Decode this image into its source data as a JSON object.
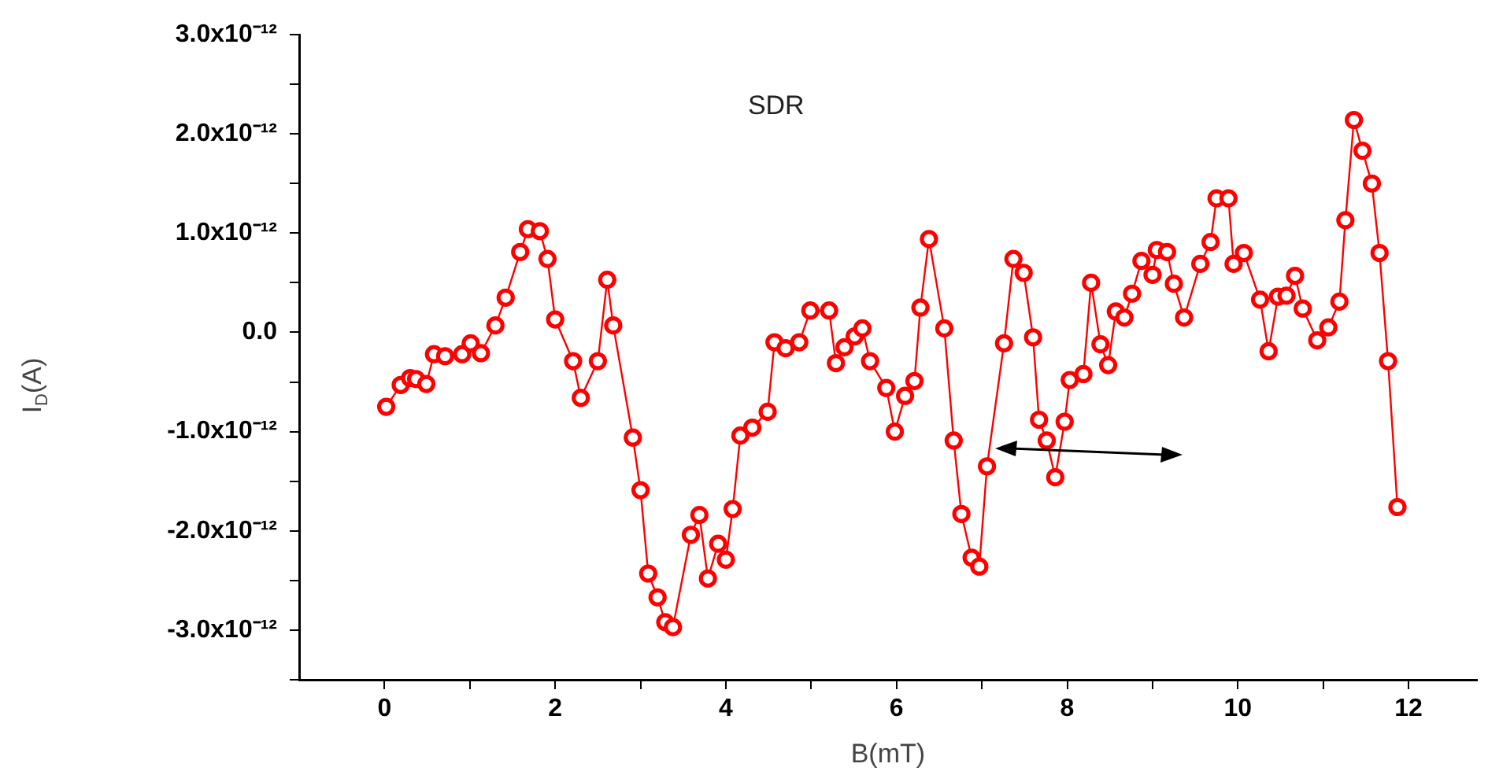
{
  "chart_data": {
    "type": "line",
    "xlabel": "B(mT)",
    "ylabel": "I$_{D}$(A)",
    "annotations": [
      "SDR"
    ],
    "xlim": [
      -1,
      12.8
    ],
    "xticks": [
      0,
      {
        "value": 1,
        "label": null
      },
      2,
      {
        "value": 3,
        "label": null
      },
      4,
      {
        "value": 5,
        "label": null
      },
      6,
      {
        "value": 7,
        "label": null
      },
      8,
      {
        "value": 9,
        "label": null
      },
      10,
      {
        "value": 11,
        "label": null
      },
      12
    ],
    "ylim": [
      -3.5e-12,
      3e-12
    ],
    "yticks": [
      {
        "value": -3.5e-12,
        "label": null
      },
      {
        "value": -3e-12,
        "label": "-3.0x10⁻¹²"
      },
      {
        "value": -2.5e-12,
        "label": null
      },
      {
        "value": -2e-12,
        "label": "-2.0x10⁻¹²"
      },
      {
        "value": -1.5e-12,
        "label": null
      },
      {
        "value": -1e-12,
        "label": "-1.0x10⁻¹²"
      },
      {
        "value": -5e-13,
        "label": null
      },
      {
        "value": 0,
        "label": "0.0"
      },
      {
        "value": 5e-13,
        "label": null
      },
      {
        "value": 1e-12,
        "label": "1.0x10⁻¹²"
      },
      {
        "value": 1.5e-12,
        "label": null
      },
      {
        "value": 2e-12,
        "label": "2.0x10⁻¹²"
      },
      {
        "value": 2.5e-12,
        "label": null
      },
      {
        "value": 3e-12,
        "label": "3.0x10⁻¹²"
      }
    ],
    "grid": false,
    "legend": false,
    "marker": "circle",
    "line_style": "solid",
    "series": [
      {
        "color": "#ff0000",
        "x": [
          0.02,
          0.19,
          0.3,
          0.37,
          0.49,
          0.58,
          0.71,
          0.91,
          1.01,
          1.13,
          1.3,
          1.42,
          1.59,
          1.68,
          1.82,
          1.91,
          2.0,
          2.21,
          2.3,
          2.5,
          2.61,
          2.68,
          2.91,
          3.0,
          3.09,
          3.2,
          3.29,
          3.38,
          3.59,
          3.69,
          3.79,
          3.91,
          4.0,
          4.08,
          4.17,
          4.31,
          4.49,
          4.57,
          4.7,
          4.86,
          4.99,
          5.21,
          5.29,
          5.39,
          5.51,
          5.6,
          5.69,
          5.88,
          5.98,
          6.1,
          6.21,
          6.28,
          6.38,
          6.56,
          6.67,
          6.76,
          6.88,
          6.97,
          7.06,
          7.26,
          7.37,
          7.49,
          7.6,
          7.67,
          7.76,
          7.86,
          7.97,
          8.03,
          8.19,
          8.28,
          8.39,
          8.48,
          8.57,
          8.67,
          8.76,
          8.87,
          9.0,
          9.05,
          9.17,
          9.25,
          9.37,
          9.56,
          9.68,
          9.75,
          9.89,
          9.95,
          10.07,
          10.26,
          10.36,
          10.47,
          10.57,
          10.67,
          10.76,
          10.93,
          11.06,
          11.19,
          11.26,
          11.36,
          11.46,
          11.57,
          11.66,
          11.76,
          11.87
        ],
        "values": [
          -7.5e-13,
          -5.3e-13,
          -4.6e-13,
          -4.7e-13,
          -5.2e-13,
          -2.2e-13,
          -2.4e-13,
          -2.2e-13,
          -1.1e-13,
          -2.1e-13,
          7e-14,
          3.5e-13,
          8.1e-13,
          1.04e-12,
          1.02e-12,
          7.4e-13,
          1.3e-13,
          -2.9e-13,
          -6.6e-13,
          -2.9e-13,
          5.3e-13,
          7e-14,
          -1.06e-12,
          -1.59e-12,
          -2.43e-12,
          -2.67e-12,
          -2.92e-12,
          -2.97e-12,
          -2.04e-12,
          -1.84e-12,
          -2.48e-12,
          -2.13e-12,
          -2.29e-12,
          -1.78e-12,
          -1.04e-12,
          -9.6e-13,
          -8e-13,
          -1e-13,
          -1.6e-13,
          -1e-13,
          2.2e-13,
          2.2e-13,
          -3.1e-13,
          -1.5e-13,
          -4e-14,
          4e-14,
          -2.9e-13,
          -5.6e-13,
          -1e-12,
          -6.4e-13,
          -4.9e-13,
          2.5e-13,
          9.4e-13,
          4e-14,
          -1.09e-12,
          -1.83e-12,
          -2.27e-12,
          -2.36e-12,
          -1.35e-12,
          -1.1e-13,
          7.4e-13,
          6e-13,
          -5e-14,
          -8.8e-13,
          -1.09e-12,
          -1.46e-12,
          -9e-13,
          -4.8e-13,
          -4.2e-13,
          5e-13,
          -1.2e-13,
          -3.3e-13,
          2.1e-13,
          1.5e-13,
          3.9e-13,
          7.2e-13,
          5.8e-13,
          8.3e-13,
          8.1e-13,
          4.9e-13,
          1.5e-13,
          6.9e-13,
          9.1e-13,
          1.35e-12,
          1.35e-12,
          6.9e-13,
          8e-13,
          3.3e-13,
          -1.9e-13,
          3.6e-13,
          3.7e-13,
          5.7e-13,
          2.4e-13,
          -8e-14,
          5e-14,
          3.1e-13,
          1.13e-12,
          2.14e-12,
          1.83e-12,
          1.5e-12,
          8e-13,
          -2.9e-13,
          -1.76e-12
        ]
      }
    ]
  }
}
